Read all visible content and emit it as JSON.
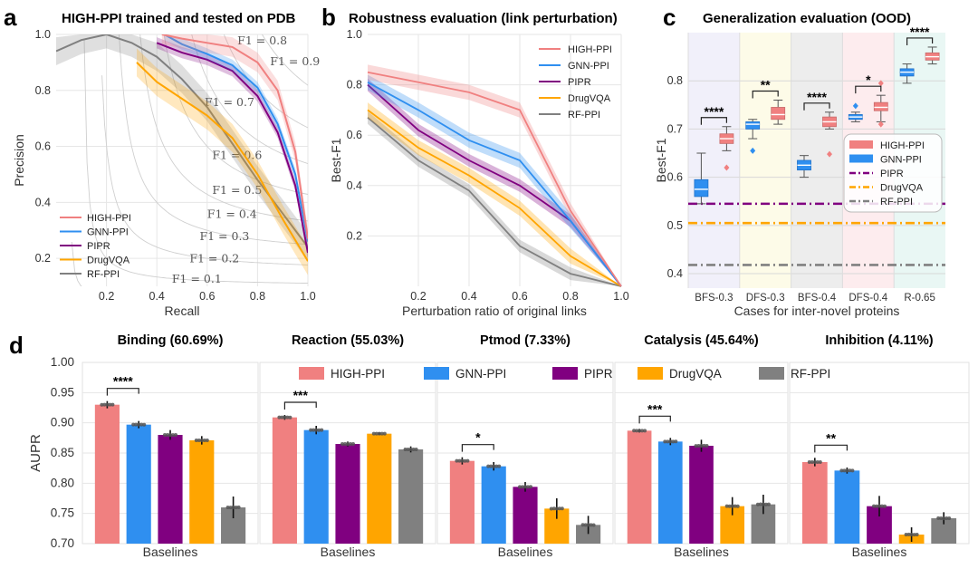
{
  "colors": {
    "HIGH-PPI": "#f08080",
    "GNN-PPI": "#2f8ff0",
    "PIPR": "#800080",
    "DrugVQA": "#ffa500",
    "RF-PPI": "#808080"
  },
  "panels": {
    "a": {
      "label": "a",
      "title": "HIGH-PPI trained and tested on PDB"
    },
    "b": {
      "label": "b",
      "title": "Robustness evaluation (link perturbation)"
    },
    "c": {
      "label": "c",
      "title": "Generalization evaluation (OOD)"
    },
    "d": {
      "label": "d"
    }
  },
  "chart_data": [
    {
      "id": "a",
      "type": "line",
      "title": "HIGH-PPI trained and tested on PDB",
      "xlabel": "Recall",
      "ylabel": "Precision",
      "xlim": [
        0.0,
        1.0
      ],
      "ylim": [
        0.1,
        1.0
      ],
      "xticks": [
        "0.2",
        "0.4",
        "0.6",
        "0.8",
        "1.0"
      ],
      "yticks": [
        "0.2",
        "0.4",
        "0.6",
        "0.8",
        "1.0"
      ],
      "iso_f1_labels": [
        "F1 = 0.1",
        "F1 = 0.2",
        "F1 = 0.3",
        "F1 = 0.4",
        "F1 = 0.5",
        "F1 = 0.6",
        "F1 = 0.7",
        "F1 = 0.8",
        "F1 = 0.9"
      ],
      "iso_f1_values": [
        0.1,
        0.2,
        0.3,
        0.4,
        0.5,
        0.6,
        0.7,
        0.8,
        0.9
      ],
      "legend": [
        "HIGH-PPI",
        "GNN-PPI",
        "PIPR",
        "DrugVQA",
        "RF-PPI"
      ],
      "series": [
        {
          "name": "HIGH-PPI",
          "x": [
            0.42,
            0.5,
            0.6,
            0.7,
            0.8,
            0.88,
            0.95,
            1.0
          ],
          "y": [
            1.0,
            0.985,
            0.97,
            0.955,
            0.9,
            0.8,
            0.58,
            0.27
          ],
          "band": 0.035
        },
        {
          "name": "GNN-PPI",
          "x": [
            0.43,
            0.5,
            0.6,
            0.7,
            0.8,
            0.88,
            0.95,
            1.0
          ],
          "y": [
            1.0,
            0.965,
            0.93,
            0.89,
            0.81,
            0.68,
            0.5,
            0.26
          ],
          "band": 0.02
        },
        {
          "name": "PIPR",
          "x": [
            0.4,
            0.5,
            0.6,
            0.7,
            0.8,
            0.88,
            0.95,
            1.0
          ],
          "y": [
            0.97,
            0.935,
            0.91,
            0.87,
            0.78,
            0.65,
            0.46,
            0.22
          ],
          "band": 0.02
        },
        {
          "name": "DrugVQA",
          "x": [
            0.32,
            0.4,
            0.5,
            0.6,
            0.7,
            0.8,
            0.9,
            1.0
          ],
          "y": [
            0.9,
            0.83,
            0.77,
            0.71,
            0.63,
            0.5,
            0.34,
            0.19
          ],
          "band": 0.05
        },
        {
          "name": "RF-PPI",
          "x": [
            0.0,
            0.1,
            0.2,
            0.3,
            0.4,
            0.5,
            0.6,
            0.7,
            0.8,
            0.9,
            1.0
          ],
          "y": [
            0.94,
            0.98,
            1.0,
            0.97,
            0.92,
            0.84,
            0.74,
            0.61,
            0.48,
            0.36,
            0.24
          ],
          "band": 0.05
        }
      ]
    },
    {
      "id": "b",
      "type": "line",
      "title": "Robustness evaluation (link perturbation)",
      "xlabel": "Perturbation ratio of original links",
      "ylabel": "Best-F1",
      "xlim": [
        0.0,
        1.0
      ],
      "ylim": [
        0.0,
        1.0
      ],
      "xticks": [
        "0.2",
        "0.4",
        "0.6",
        "0.8",
        "1.0"
      ],
      "yticks": [
        "0.2",
        "0.4",
        "0.6",
        "0.8",
        "1.0"
      ],
      "legend": [
        "HIGH-PPI",
        "GNN-PPI",
        "PIPR",
        "DrugVQA",
        "RF-PPI"
      ],
      "series": [
        {
          "name": "HIGH-PPI",
          "x": [
            0.0,
            0.2,
            0.4,
            0.6,
            0.8,
            1.0
          ],
          "y": [
            0.85,
            0.81,
            0.77,
            0.7,
            0.3,
            0.0
          ],
          "band": 0.03
        },
        {
          "name": "GNN-PPI",
          "x": [
            0.0,
            0.2,
            0.4,
            0.6,
            0.8,
            1.0
          ],
          "y": [
            0.81,
            0.7,
            0.58,
            0.5,
            0.26,
            0.0
          ],
          "band": 0.03
        },
        {
          "name": "PIPR",
          "x": [
            0.0,
            0.2,
            0.4,
            0.6,
            0.8,
            1.0
          ],
          "y": [
            0.8,
            0.62,
            0.5,
            0.4,
            0.26,
            0.0
          ],
          "band": 0.025
        },
        {
          "name": "DrugVQA",
          "x": [
            0.0,
            0.2,
            0.4,
            0.6,
            0.8,
            1.0
          ],
          "y": [
            0.7,
            0.55,
            0.44,
            0.31,
            0.12,
            0.0
          ],
          "band": 0.03
        },
        {
          "name": "RF-PPI",
          "x": [
            0.0,
            0.2,
            0.4,
            0.6,
            0.8,
            1.0
          ],
          "y": [
            0.67,
            0.5,
            0.38,
            0.16,
            0.05,
            0.0
          ],
          "band": 0.025
        }
      ]
    },
    {
      "id": "c",
      "type": "box",
      "title": "Generalization evaluation (OOD)",
      "xlabel": "Cases for inter-novel proteins",
      "ylabel": "Best-F1",
      "ylim": [
        0.37,
        0.9
      ],
      "yticks": [
        "0.4",
        "0.5",
        "0.6",
        "0.7",
        "0.8"
      ],
      "categories": [
        "BFS-0.3",
        "DFS-0.3",
        "BFS-0.4",
        "DFS-0.4",
        "R-0.65"
      ],
      "region_colors": [
        "#f1f0fa",
        "#fdfbe8",
        "#ededed",
        "#fdecee",
        "#e9f7f4"
      ],
      "significance": [
        "****",
        "**",
        "****",
        "*",
        "****"
      ],
      "legend": [
        "HIGH-PPI",
        "GNN-PPI",
        "PIPR",
        "DrugVQA",
        "RF-PPI"
      ],
      "baselines": [
        {
          "name": "PIPR",
          "value": 0.545
        },
        {
          "name": "DrugVQA",
          "value": 0.505
        },
        {
          "name": "RF-PPI",
          "value": 0.418
        }
      ],
      "boxes": [
        {
          "category": "BFS-0.3",
          "GNN-PPI": {
            "min": 0.545,
            "q1": 0.56,
            "median": 0.575,
            "q3": 0.595,
            "max": 0.65,
            "outliers": []
          },
          "HIGH-PPI": {
            "min": 0.655,
            "q1": 0.67,
            "median": 0.68,
            "q3": 0.69,
            "max": 0.705,
            "outliers": [
              0.62
            ]
          }
        },
        {
          "category": "DFS-0.3",
          "GNN-PPI": {
            "min": 0.68,
            "q1": 0.7,
            "median": 0.71,
            "q3": 0.715,
            "max": 0.72,
            "outliers": [
              0.655
            ]
          },
          "HIGH-PPI": {
            "min": 0.71,
            "q1": 0.72,
            "median": 0.73,
            "q3": 0.745,
            "max": 0.76,
            "outliers": []
          }
        },
        {
          "category": "BFS-0.4",
          "GNN-PPI": {
            "min": 0.6,
            "q1": 0.615,
            "median": 0.625,
            "q3": 0.635,
            "max": 0.645,
            "outliers": []
          },
          "HIGH-PPI": {
            "min": 0.7,
            "q1": 0.705,
            "median": 0.715,
            "q3": 0.725,
            "max": 0.735,
            "outliers": [
              0.648
            ]
          }
        },
        {
          "category": "DFS-0.4",
          "GNN-PPI": {
            "min": 0.715,
            "q1": 0.72,
            "median": 0.725,
            "q3": 0.73,
            "max": 0.735,
            "outliers": [
              0.748
            ]
          },
          "HIGH-PPI": {
            "min": 0.715,
            "q1": 0.738,
            "median": 0.745,
            "q3": 0.755,
            "max": 0.77,
            "outliers": [
              0.71,
              0.795
            ]
          }
        },
        {
          "category": "R-0.65",
          "GNN-PPI": {
            "min": 0.795,
            "q1": 0.81,
            "median": 0.818,
            "q3": 0.825,
            "max": 0.835,
            "outliers": []
          },
          "HIGH-PPI": {
            "min": 0.835,
            "q1": 0.843,
            "median": 0.85,
            "q3": 0.858,
            "max": 0.87,
            "outliers": []
          }
        }
      ]
    },
    {
      "id": "d",
      "type": "bar",
      "ylabel": "AUPR",
      "ylim": [
        0.7,
        1.0
      ],
      "yticks": [
        "0.70",
        "0.75",
        "0.80",
        "0.85",
        "0.90",
        "0.95",
        "1.00"
      ],
      "xlabel": "Baselines",
      "legend": [
        "HIGH-PPI",
        "GNN-PPI",
        "PIPR",
        "DrugVQA",
        "RF-PPI"
      ],
      "groups": [
        {
          "title": "Binding (60.69%)",
          "values": [
            0.93,
            0.897,
            0.88,
            0.871,
            0.76
          ],
          "errors": [
            0.006,
            0.006,
            0.008,
            0.007,
            0.018
          ],
          "significance": "****"
        },
        {
          "title": "Reaction (55.03%)",
          "values": [
            0.909,
            0.888,
            0.865,
            0.882,
            0.856
          ],
          "errors": [
            0.004,
            0.007,
            0.004,
            0.002,
            0.005
          ],
          "significance": "***"
        },
        {
          "title": "Ptmod (7.33%)",
          "values": [
            0.837,
            0.828,
            0.794,
            0.758,
            0.731
          ],
          "errors": [
            0.006,
            0.007,
            0.008,
            0.017,
            0.015
          ],
          "significance": "*"
        },
        {
          "title": "Catalysis (45.64%)",
          "values": [
            0.887,
            0.869,
            0.862,
            0.762,
            0.765
          ],
          "errors": [
            0.003,
            0.006,
            0.01,
            0.015,
            0.016
          ],
          "significance": "***"
        },
        {
          "title": "Inhibition (4.11%)",
          "values": [
            0.835,
            0.821,
            0.762,
            0.715,
            0.742
          ],
          "errors": [
            0.007,
            0.005,
            0.017,
            0.012,
            0.01
          ],
          "significance": "**"
        }
      ]
    }
  ]
}
